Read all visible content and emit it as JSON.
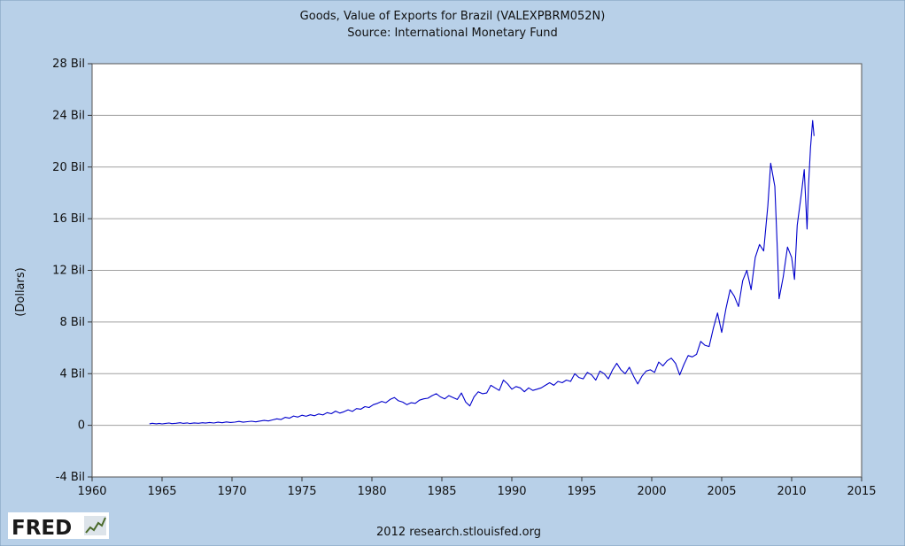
{
  "chart_data": {
    "type": "line",
    "title": "Goods, Value of Exports for Brazil (VALEXPBRM052N)",
    "subtitle": "Source: International Monetary Fund",
    "xlabel": "",
    "ylabel": "(Dollars)",
    "xlim": [
      1960,
      2015
    ],
    "ylim": [
      -4,
      28
    ],
    "x_ticks": [
      {
        "value": 1960,
        "label": "1960"
      },
      {
        "value": 1965,
        "label": "1965"
      },
      {
        "value": 1970,
        "label": "1970"
      },
      {
        "value": 1975,
        "label": "1975"
      },
      {
        "value": 1980,
        "label": "1980"
      },
      {
        "value": 1985,
        "label": "1985"
      },
      {
        "value": 1990,
        "label": "1990"
      },
      {
        "value": 1995,
        "label": "1995"
      },
      {
        "value": 2000,
        "label": "2000"
      },
      {
        "value": 2005,
        "label": "2005"
      },
      {
        "value": 2010,
        "label": "2010"
      },
      {
        "value": 2015,
        "label": "2015"
      }
    ],
    "y_ticks": [
      {
        "value": -4,
        "label": "-4 Bil"
      },
      {
        "value": 0,
        "label": "0"
      },
      {
        "value": 4,
        "label": "4 Bil"
      },
      {
        "value": 8,
        "label": "8 Bil"
      },
      {
        "value": 12,
        "label": "12 Bil"
      },
      {
        "value": 16,
        "label": "16 Bil"
      },
      {
        "value": 20,
        "label": "20 Bil"
      },
      {
        "value": 24,
        "label": "24 Bil"
      },
      {
        "value": 28,
        "label": "28 Bil"
      }
    ],
    "grid": "horizontal",
    "legend": "none",
    "y_unit": "billions of dollars",
    "series": [
      {
        "color": "#0000cc",
        "points": [
          [
            1964.1,
            0.12
          ],
          [
            1964.3,
            0.16
          ],
          [
            1964.6,
            0.12
          ],
          [
            1964.8,
            0.15
          ],
          [
            1965.0,
            0.11
          ],
          [
            1965.2,
            0.14
          ],
          [
            1965.5,
            0.18
          ],
          [
            1965.7,
            0.13
          ],
          [
            1966.0,
            0.16
          ],
          [
            1966.3,
            0.2
          ],
          [
            1966.5,
            0.15
          ],
          [
            1966.8,
            0.19
          ],
          [
            1967.0,
            0.14
          ],
          [
            1967.3,
            0.19
          ],
          [
            1967.6,
            0.16
          ],
          [
            1967.9,
            0.2
          ],
          [
            1968.1,
            0.17
          ],
          [
            1968.4,
            0.22
          ],
          [
            1968.7,
            0.18
          ],
          [
            1969.0,
            0.24
          ],
          [
            1969.3,
            0.2
          ],
          [
            1969.6,
            0.26
          ],
          [
            1969.9,
            0.22
          ],
          [
            1970.2,
            0.25
          ],
          [
            1970.5,
            0.3
          ],
          [
            1970.8,
            0.24
          ],
          [
            1971.1,
            0.28
          ],
          [
            1971.4,
            0.32
          ],
          [
            1971.7,
            0.27
          ],
          [
            1972.0,
            0.33
          ],
          [
            1972.3,
            0.38
          ],
          [
            1972.6,
            0.34
          ],
          [
            1972.9,
            0.42
          ],
          [
            1973.2,
            0.5
          ],
          [
            1973.5,
            0.45
          ],
          [
            1973.8,
            0.62
          ],
          [
            1974.1,
            0.55
          ],
          [
            1974.4,
            0.72
          ],
          [
            1974.7,
            0.64
          ],
          [
            1975.0,
            0.78
          ],
          [
            1975.3,
            0.7
          ],
          [
            1975.6,
            0.82
          ],
          [
            1975.9,
            0.74
          ],
          [
            1976.2,
            0.88
          ],
          [
            1976.5,
            0.8
          ],
          [
            1976.8,
            0.98
          ],
          [
            1977.1,
            0.9
          ],
          [
            1977.4,
            1.1
          ],
          [
            1977.7,
            0.95
          ],
          [
            1978.0,
            1.05
          ],
          [
            1978.3,
            1.2
          ],
          [
            1978.6,
            1.08
          ],
          [
            1978.9,
            1.3
          ],
          [
            1979.2,
            1.25
          ],
          [
            1979.5,
            1.45
          ],
          [
            1979.8,
            1.38
          ],
          [
            1980.1,
            1.6
          ],
          [
            1980.4,
            1.7
          ],
          [
            1980.7,
            1.85
          ],
          [
            1981.0,
            1.75
          ],
          [
            1981.3,
            2.0
          ],
          [
            1981.6,
            2.15
          ],
          [
            1981.9,
            1.9
          ],
          [
            1982.2,
            1.8
          ],
          [
            1982.5,
            1.6
          ],
          [
            1982.8,
            1.75
          ],
          [
            1983.1,
            1.7
          ],
          [
            1983.4,
            1.95
          ],
          [
            1983.7,
            2.05
          ],
          [
            1984.0,
            2.1
          ],
          [
            1984.3,
            2.3
          ],
          [
            1984.6,
            2.45
          ],
          [
            1984.9,
            2.2
          ],
          [
            1985.2,
            2.05
          ],
          [
            1985.5,
            2.3
          ],
          [
            1985.8,
            2.15
          ],
          [
            1986.1,
            2.0
          ],
          [
            1986.4,
            2.5
          ],
          [
            1986.7,
            1.8
          ],
          [
            1987.0,
            1.5
          ],
          [
            1987.3,
            2.2
          ],
          [
            1987.6,
            2.6
          ],
          [
            1987.9,
            2.45
          ],
          [
            1988.2,
            2.5
          ],
          [
            1988.5,
            3.1
          ],
          [
            1988.8,
            2.9
          ],
          [
            1989.1,
            2.7
          ],
          [
            1989.4,
            3.5
          ],
          [
            1989.7,
            3.2
          ],
          [
            1990.0,
            2.8
          ],
          [
            1990.3,
            3.0
          ],
          [
            1990.6,
            2.9
          ],
          [
            1990.9,
            2.6
          ],
          [
            1991.2,
            2.9
          ],
          [
            1991.5,
            2.7
          ],
          [
            1991.8,
            2.8
          ],
          [
            1992.1,
            2.9
          ],
          [
            1992.4,
            3.1
          ],
          [
            1992.7,
            3.3
          ],
          [
            1993.0,
            3.1
          ],
          [
            1993.3,
            3.4
          ],
          [
            1993.6,
            3.3
          ],
          [
            1993.9,
            3.5
          ],
          [
            1994.2,
            3.4
          ],
          [
            1994.5,
            4.0
          ],
          [
            1994.8,
            3.7
          ],
          [
            1995.1,
            3.6
          ],
          [
            1995.4,
            4.1
          ],
          [
            1995.7,
            3.9
          ],
          [
            1996.0,
            3.5
          ],
          [
            1996.3,
            4.2
          ],
          [
            1996.6,
            4.0
          ],
          [
            1996.9,
            3.6
          ],
          [
            1997.2,
            4.3
          ],
          [
            1997.5,
            4.8
          ],
          [
            1997.8,
            4.3
          ],
          [
            1998.1,
            4.0
          ],
          [
            1998.4,
            4.5
          ],
          [
            1998.7,
            3.8
          ],
          [
            1999.0,
            3.2
          ],
          [
            1999.3,
            3.8
          ],
          [
            1999.6,
            4.2
          ],
          [
            1999.9,
            4.3
          ],
          [
            2000.2,
            4.1
          ],
          [
            2000.5,
            4.9
          ],
          [
            2000.8,
            4.6
          ],
          [
            2001.1,
            5.0
          ],
          [
            2001.4,
            5.2
          ],
          [
            2001.7,
            4.8
          ],
          [
            2002.0,
            3.9
          ],
          [
            2002.3,
            4.7
          ],
          [
            2002.6,
            5.4
          ],
          [
            2002.9,
            5.3
          ],
          [
            2003.2,
            5.5
          ],
          [
            2003.5,
            6.5
          ],
          [
            2003.8,
            6.2
          ],
          [
            2004.1,
            6.1
          ],
          [
            2004.4,
            7.5
          ],
          [
            2004.7,
            8.7
          ],
          [
            2005.0,
            7.2
          ],
          [
            2005.3,
            9.0
          ],
          [
            2005.6,
            10.5
          ],
          [
            2005.9,
            10.0
          ],
          [
            2006.2,
            9.2
          ],
          [
            2006.5,
            11.2
          ],
          [
            2006.8,
            12.0
          ],
          [
            2007.1,
            10.5
          ],
          [
            2007.4,
            13.0
          ],
          [
            2007.7,
            14.0
          ],
          [
            2008.0,
            13.5
          ],
          [
            2008.3,
            17.0
          ],
          [
            2008.5,
            20.3
          ],
          [
            2008.8,
            18.5
          ],
          [
            2009.0,
            13.0
          ],
          [
            2009.1,
            9.8
          ],
          [
            2009.4,
            11.5
          ],
          [
            2009.7,
            13.8
          ],
          [
            2010.0,
            13.0
          ],
          [
            2010.2,
            11.3
          ],
          [
            2010.4,
            15.5
          ],
          [
            2010.7,
            18.0
          ],
          [
            2010.9,
            19.8
          ],
          [
            2011.1,
            15.2
          ],
          [
            2011.2,
            18.5
          ],
          [
            2011.35,
            21.5
          ],
          [
            2011.5,
            23.6
          ],
          [
            2011.6,
            22.4
          ]
        ]
      }
    ]
  },
  "footer": {
    "logo_text": "FRED",
    "credit": "2012 research.stlouisfed.org"
  },
  "colors": {
    "frame_background": "#b8d0e8",
    "plot_background": "#ffffff",
    "gridline": "#a0a0a0",
    "line": "#0000cc"
  }
}
